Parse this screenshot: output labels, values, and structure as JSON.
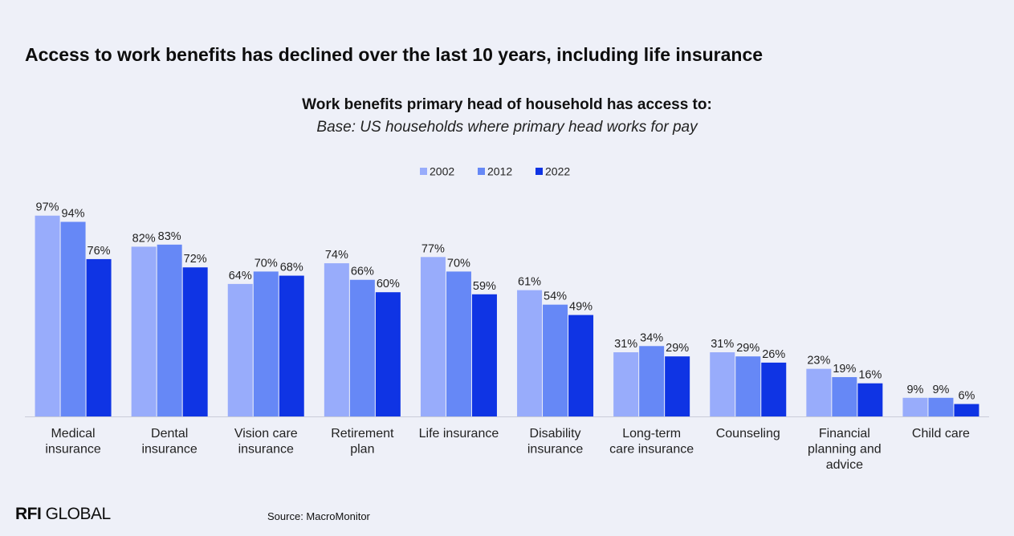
{
  "headline": "Access to work benefits has declined over the last 10 years, including life insurance",
  "logo": {
    "strong": "RFI",
    "rest": " GLOBAL"
  },
  "source": "Source: MacroMonitor",
  "colors": {
    "2002": "#98acfb",
    "2012": "#6688f6",
    "2022": "#0f34e4",
    "axis": "#c9ccd8"
  },
  "chart_data": {
    "type": "bar",
    "title": "Work benefits primary head of household has access to:",
    "subtitle": "Base: US households where primary head works for pay",
    "xlabel": "",
    "ylabel": "",
    "ylim": [
      0,
      100
    ],
    "grid": false,
    "legend_position": "top-center",
    "value_format": "percent",
    "categories": [
      [
        "Medical",
        "insurance"
      ],
      [
        "Dental",
        "insurance"
      ],
      [
        "Vision care",
        "insurance"
      ],
      [
        "Retirement",
        "plan"
      ],
      [
        "Life insurance"
      ],
      [
        "Disability",
        "insurance"
      ],
      [
        "Long-term",
        "care insurance"
      ],
      [
        "Counseling"
      ],
      [
        "Financial",
        "planning and",
        "advice"
      ],
      [
        "Child care"
      ]
    ],
    "series": [
      {
        "name": "2002",
        "values": [
          97,
          82,
          64,
          74,
          77,
          61,
          31,
          31,
          23,
          9
        ]
      },
      {
        "name": "2012",
        "values": [
          94,
          83,
          70,
          66,
          70,
          54,
          34,
          29,
          19,
          9
        ]
      },
      {
        "name": "2022",
        "values": [
          76,
          72,
          68,
          60,
          59,
          49,
          29,
          26,
          16,
          6
        ]
      }
    ]
  }
}
